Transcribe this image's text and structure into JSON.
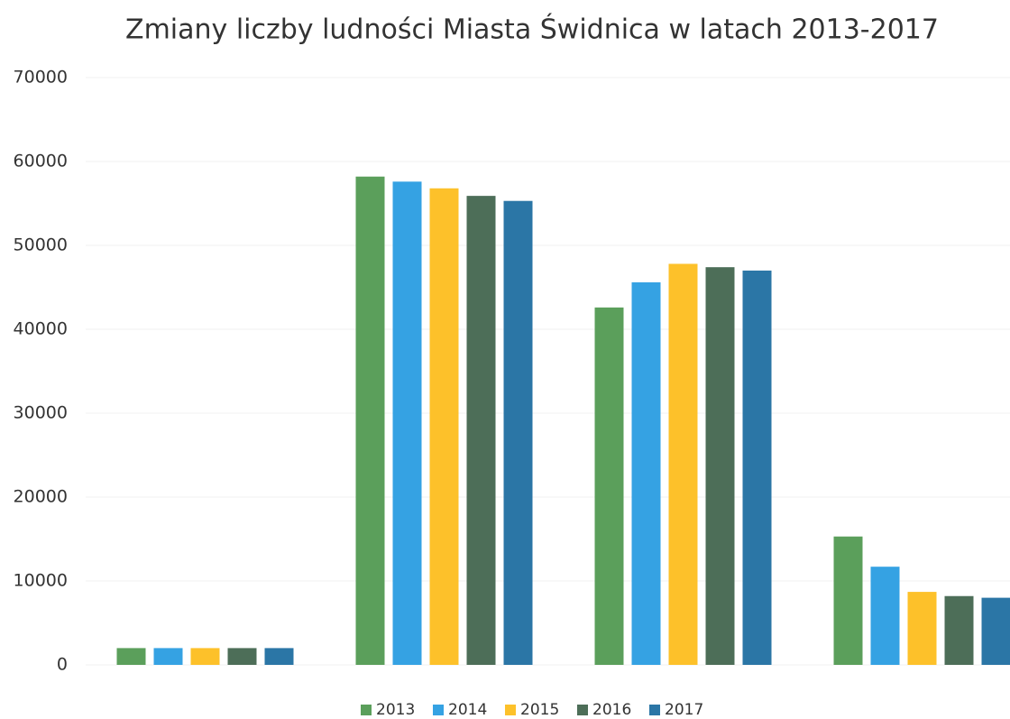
{
  "chart_data": {
    "type": "bar",
    "title": "Zmiany liczby ludności Miasta Świdnica w latach 2013-2017",
    "categories": [
      null,
      null,
      null,
      null
    ],
    "series": [
      {
        "name": "2013",
        "color": "#5b9f5b",
        "values": [
          2000,
          58200,
          42600,
          15300
        ]
      },
      {
        "name": "2014",
        "color": "#35a2e3",
        "values": [
          2000,
          57600,
          45600,
          11700
        ]
      },
      {
        "name": "2015",
        "color": "#fdc12a",
        "values": [
          2000,
          56800,
          47800,
          8700
        ]
      },
      {
        "name": "2016",
        "color": "#4d6e58",
        "values": [
          2000,
          55900,
          47400,
          8200
        ]
      },
      {
        "name": "2017",
        "color": "#2b76a6",
        "values": [
          2000,
          55300,
          47000,
          8000
        ]
      }
    ],
    "ylim": [
      0,
      70000
    ],
    "yticks": [
      0,
      10000,
      20000,
      30000,
      40000,
      50000,
      60000,
      70000
    ],
    "grid": true,
    "legend": "bottom"
  }
}
